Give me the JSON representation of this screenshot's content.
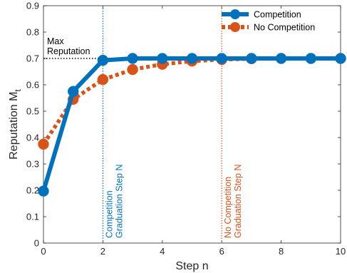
{
  "chart_data": {
    "type": "line",
    "xlabel": "Step n",
    "ylabel": "Reputation M",
    "ylabel_subscript": "t",
    "xlim": [
      0,
      10
    ],
    "ylim": [
      0,
      0.9
    ],
    "xticks": [
      0,
      2,
      4,
      6,
      8,
      10
    ],
    "yticks": [
      0,
      0.1,
      0.2,
      0.3,
      0.4,
      0.5,
      0.6,
      0.7,
      0.8,
      0.9
    ],
    "x": [
      0,
      1,
      2,
      3,
      4,
      5,
      6,
      7,
      8,
      9,
      10
    ],
    "series": [
      {
        "name": "Competition",
        "values": [
          0.197,
          0.575,
          0.693,
          0.7,
          0.7,
          0.7,
          0.7,
          0.7,
          0.7,
          0.7,
          0.7
        ],
        "color": "#0072BD",
        "line": "solid"
      },
      {
        "name": "No Competition",
        "values": [
          0.375,
          0.545,
          0.62,
          0.658,
          0.678,
          0.69,
          0.696,
          0.699,
          0.7,
          0.7,
          0.7
        ],
        "color": "#D95319",
        "line": "dotted"
      }
    ],
    "reference_line": {
      "y": 0.7,
      "label_lines": [
        "Max",
        "Reputation"
      ],
      "color": "#000000"
    },
    "vertical_markers": [
      {
        "x": 2,
        "label_lines": [
          "Competition",
          "Graduation Step N"
        ],
        "color": "#0072BD"
      },
      {
        "x": 6,
        "label_lines": [
          "No Competition",
          "Graduation Step N"
        ],
        "color": "#D95319"
      }
    ],
    "legend_position": "top-right",
    "grid": false
  }
}
